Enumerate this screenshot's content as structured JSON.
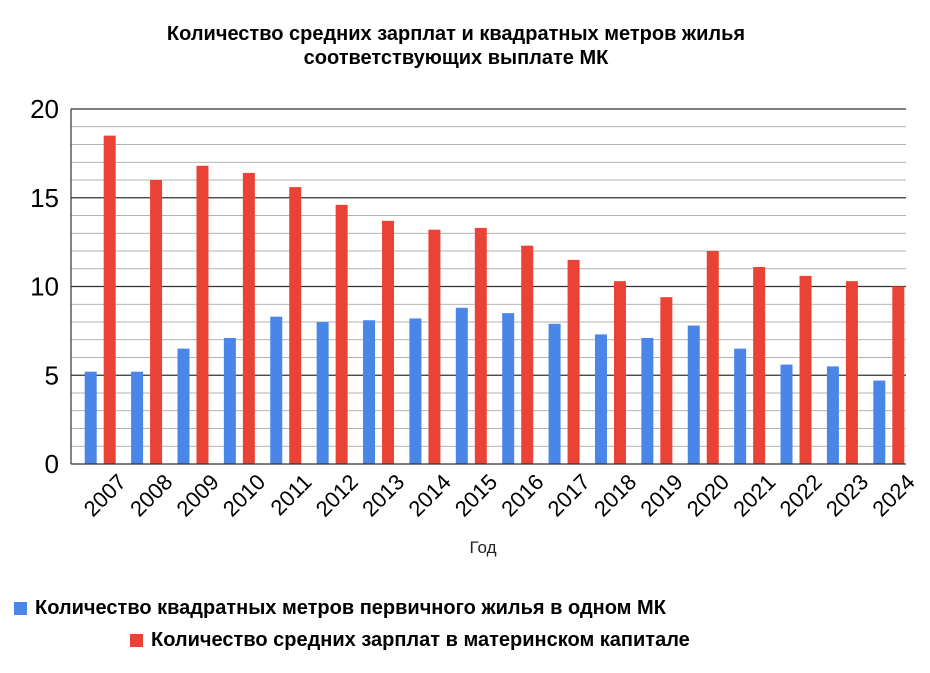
{
  "chart_data": {
    "type": "bar",
    "title": [
      "Количество средних зарплат и квадратных метров жилья",
      "соответствующих выплате МК"
    ],
    "xlabel": "Год",
    "ylabel": "",
    "ylim": [
      0,
      20
    ],
    "yticks": [
      "0",
      "5",
      "10",
      "15",
      "20"
    ],
    "grid": true,
    "legend_position": "bottom",
    "categories": [
      "2007",
      "2008",
      "2009",
      "2010",
      "2011",
      "2012",
      "2013",
      "2014",
      "2015",
      "2016",
      "2017",
      "2018",
      "2019",
      "2020",
      "2021",
      "2022",
      "2023",
      "2024"
    ],
    "series": [
      {
        "name": "Количество квадратных метров первичного жилья в одном МК",
        "color": "#4a86e8",
        "values": [
          5.2,
          5.2,
          6.5,
          7.1,
          8.3,
          8.0,
          8.1,
          8.2,
          8.8,
          8.5,
          7.9,
          7.3,
          7.1,
          7.8,
          6.5,
          5.6,
          5.5,
          4.7
        ]
      },
      {
        "name": "Количество средних зарплат в материнском капитале",
        "color": "#ea4335",
        "values": [
          18.5,
          16.0,
          16.8,
          16.4,
          15.6,
          14.6,
          13.7,
          13.2,
          13.3,
          12.3,
          11.5,
          10.3,
          9.4,
          12.0,
          11.1,
          10.6,
          10.3,
          10.0
        ]
      }
    ]
  }
}
